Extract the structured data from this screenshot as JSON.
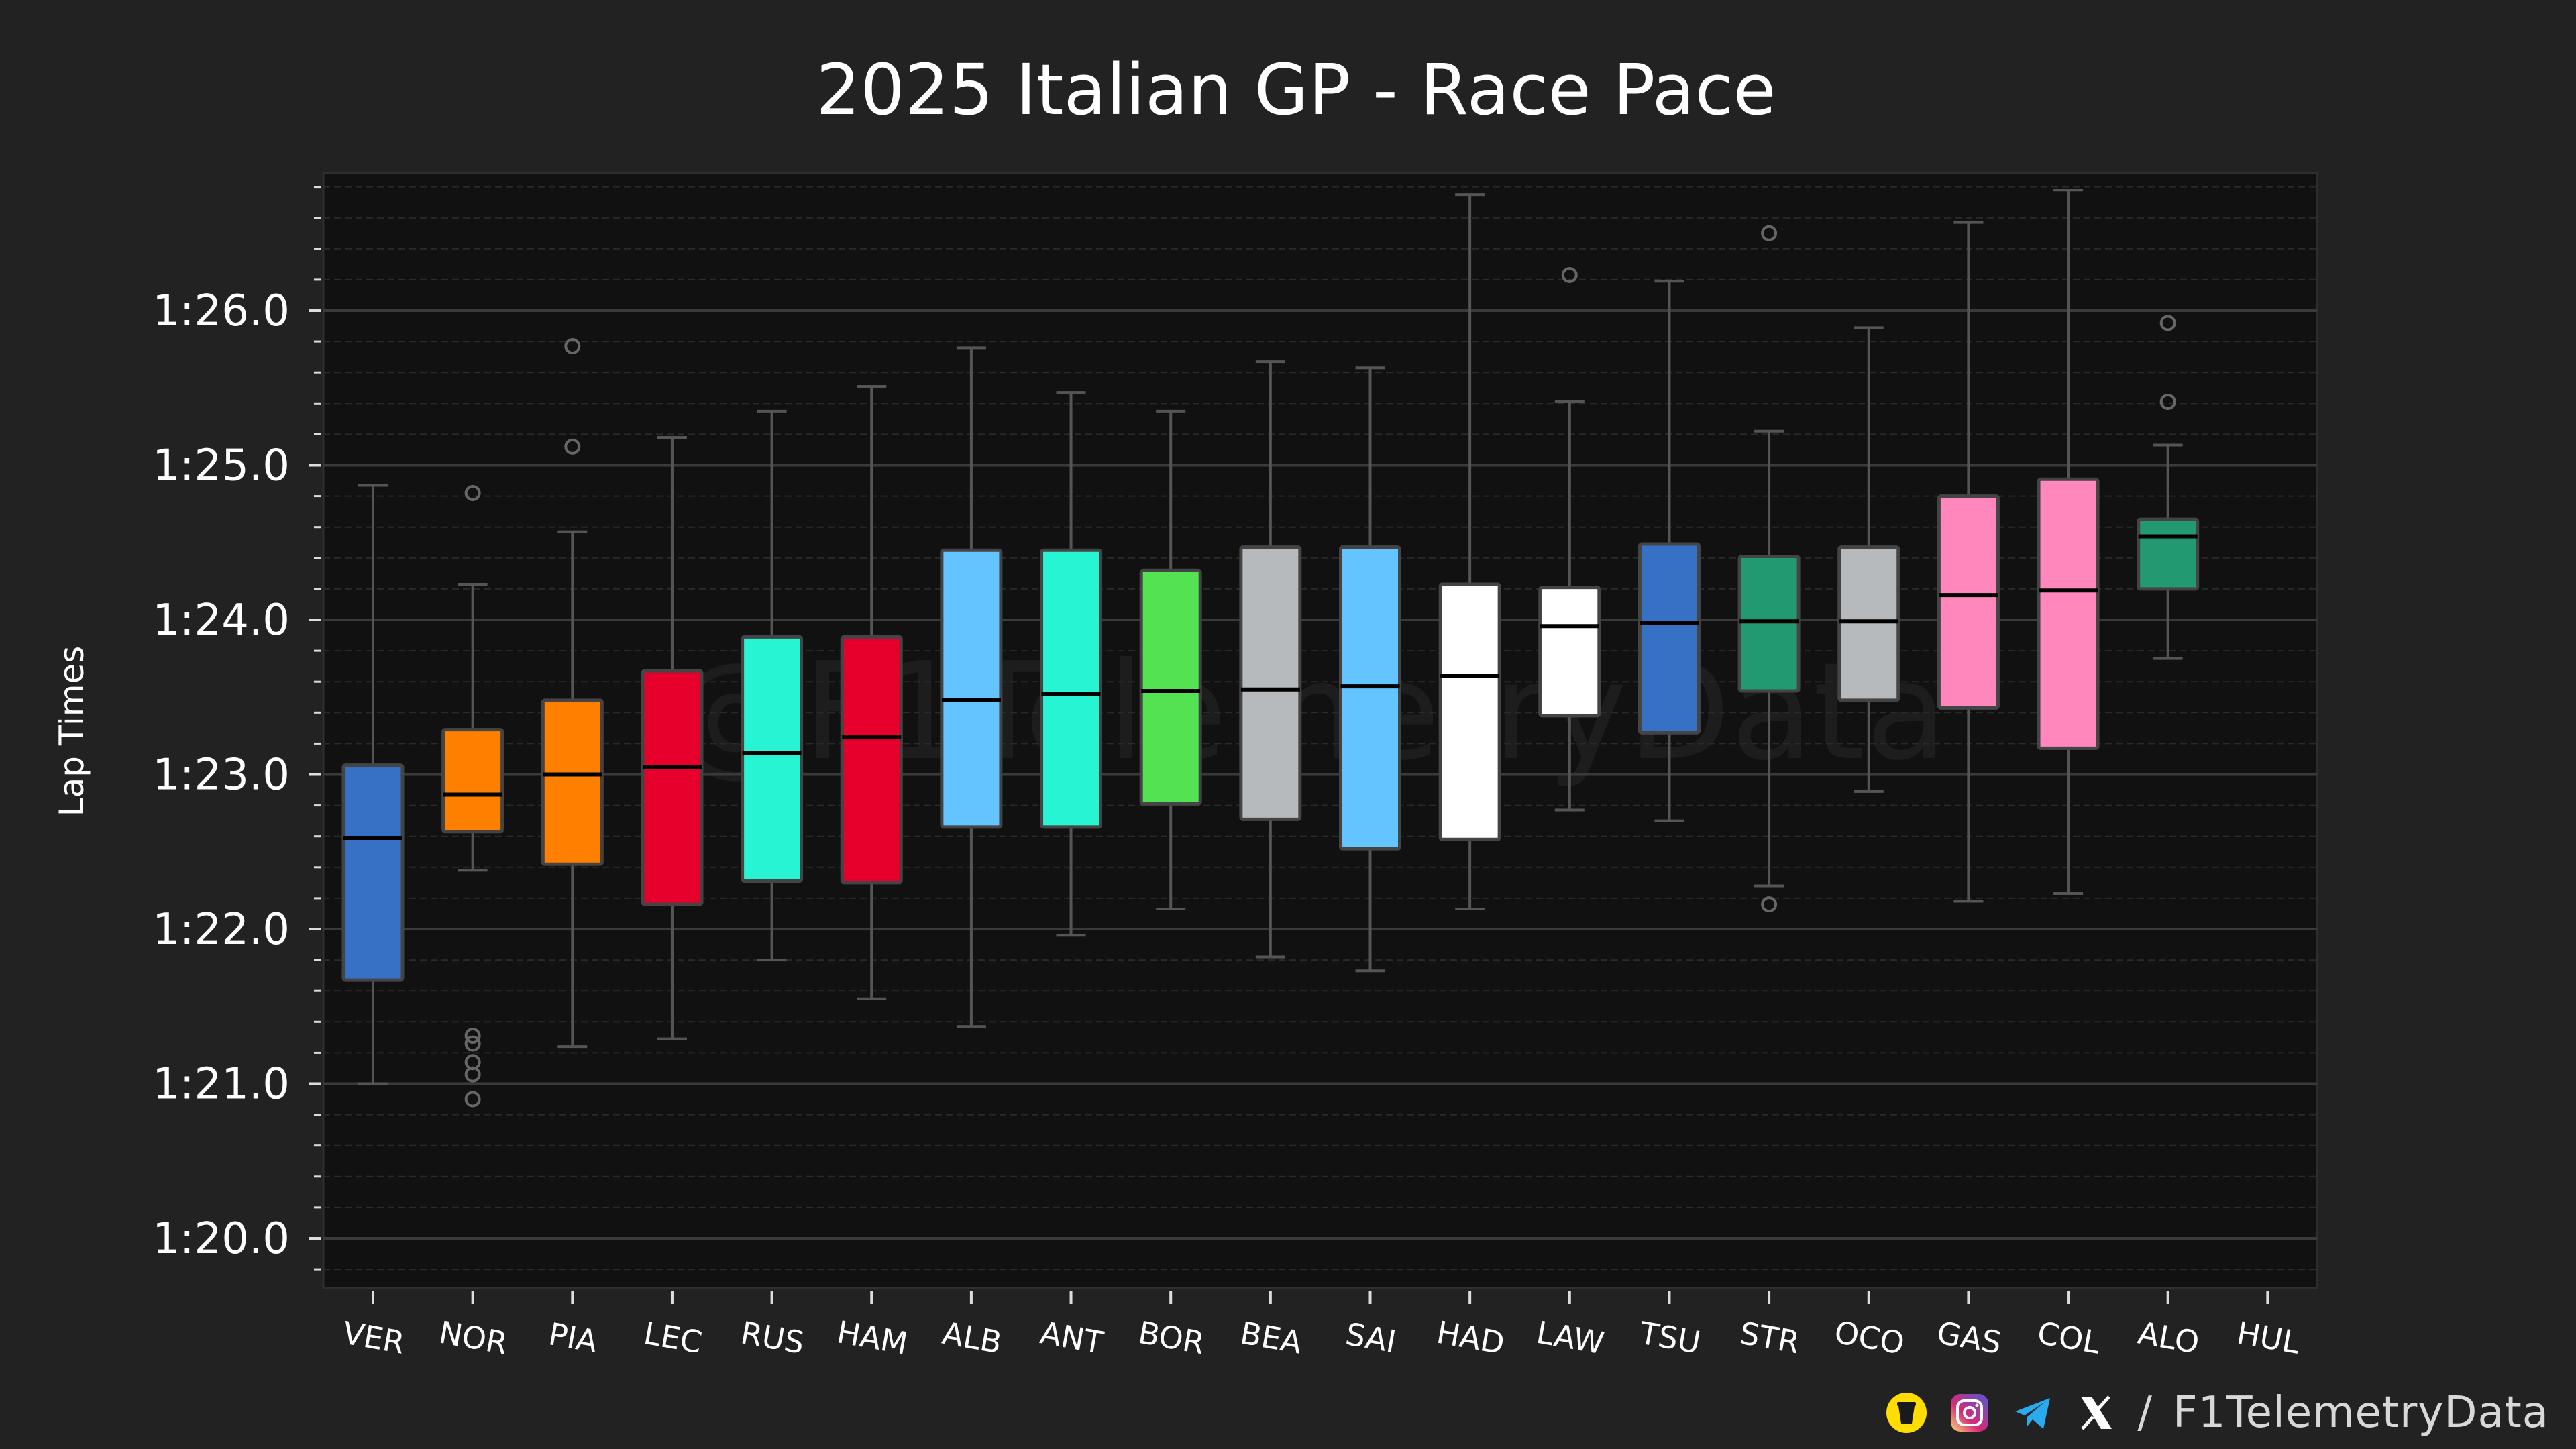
{
  "chart_data": {
    "type": "box",
    "title": "2025 Italian GP - Race Pace",
    "xlabel": "",
    "ylabel": "Lap Times",
    "ylim_seconds": [
      79.65,
      86.9
    ],
    "y_tick_values_seconds": [
      80,
      81,
      82,
      83,
      84,
      85,
      86
    ],
    "y_tick_labels": [
      "1:20.0",
      "1:21.0",
      "1:22.0",
      "1:23.0",
      "1:24.0",
      "1:25.0",
      "1:26.0"
    ],
    "grid": true,
    "watermark": "@F1TelemetryData",
    "drivers": [
      {
        "code": "VER",
        "color": "#3671C6",
        "median_color": "#000000",
        "whisker_low": 81.0,
        "q1": 81.67,
        "median": 82.59,
        "q3": 83.06,
        "whisker_high": 84.87,
        "outliers": []
      },
      {
        "code": "NOR",
        "color": "#FF8000",
        "median_color": "#000000",
        "whisker_low": 82.38,
        "q1": 82.63,
        "median": 82.87,
        "q3": 83.29,
        "whisker_high": 84.23,
        "outliers": [
          84.82,
          81.31,
          81.26,
          81.14,
          81.06,
          80.9
        ]
      },
      {
        "code": "PIA",
        "color": "#FF8000",
        "median_color": "#000000",
        "whisker_low": 81.24,
        "q1": 82.42,
        "median": 83.0,
        "q3": 83.48,
        "whisker_high": 84.57,
        "outliers": [
          85.77,
          85.12
        ]
      },
      {
        "code": "LEC",
        "color": "#E8002D",
        "median_color": "#000000",
        "whisker_low": 81.29,
        "q1": 82.16,
        "median": 83.05,
        "q3": 83.67,
        "whisker_high": 85.18,
        "outliers": []
      },
      {
        "code": "RUS",
        "color": "#27F4D2",
        "median_color": "#000000",
        "whisker_low": 81.8,
        "q1": 82.31,
        "median": 83.14,
        "q3": 83.89,
        "whisker_high": 85.35,
        "outliers": []
      },
      {
        "code": "HAM",
        "color": "#E8002D",
        "median_color": "#000000",
        "whisker_low": 81.55,
        "q1": 82.3,
        "median": 83.24,
        "q3": 83.89,
        "whisker_high": 85.51,
        "outliers": []
      },
      {
        "code": "ALB",
        "color": "#64C4FF",
        "median_color": "#000000",
        "whisker_low": 81.37,
        "q1": 82.66,
        "median": 83.48,
        "q3": 84.45,
        "whisker_high": 85.76,
        "outliers": []
      },
      {
        "code": "ANT",
        "color": "#27F4D2",
        "median_color": "#000000",
        "whisker_low": 81.96,
        "q1": 82.66,
        "median": 83.52,
        "q3": 84.45,
        "whisker_high": 85.47,
        "outliers": []
      },
      {
        "code": "BOR",
        "color": "#52E252",
        "median_color": "#000000",
        "whisker_low": 82.13,
        "q1": 82.81,
        "median": 83.54,
        "q3": 84.32,
        "whisker_high": 85.35,
        "outliers": []
      },
      {
        "code": "BEA",
        "color": "#B6BABD",
        "median_color": "#000000",
        "whisker_low": 81.82,
        "q1": 82.71,
        "median": 83.55,
        "q3": 84.47,
        "whisker_high": 85.67,
        "outliers": []
      },
      {
        "code": "SAI",
        "color": "#64C4FF",
        "median_color": "#000000",
        "whisker_low": 81.73,
        "q1": 82.52,
        "median": 83.57,
        "q3": 84.47,
        "whisker_high": 85.63,
        "outliers": []
      },
      {
        "code": "HAD",
        "color": "#FFFFFF",
        "median_color": "#000000",
        "whisker_low": 82.13,
        "q1": 82.58,
        "median": 83.64,
        "q3": 84.23,
        "whisker_high": 86.75,
        "outliers": []
      },
      {
        "code": "LAW",
        "color": "#FFFFFF",
        "median_color": "#000000",
        "whisker_low": 82.77,
        "q1": 83.38,
        "median": 83.96,
        "q3": 84.21,
        "whisker_high": 85.41,
        "outliers": [
          86.23
        ]
      },
      {
        "code": "TSU",
        "color": "#3671C6",
        "median_color": "#000000",
        "whisker_low": 82.7,
        "q1": 83.27,
        "median": 83.98,
        "q3": 84.49,
        "whisker_high": 86.19,
        "outliers": []
      },
      {
        "code": "STR",
        "color": "#229971",
        "median_color": "#000000",
        "whisker_low": 82.28,
        "q1": 83.54,
        "median": 83.99,
        "q3": 84.41,
        "whisker_high": 85.22,
        "outliers": [
          86.5,
          82.16
        ]
      },
      {
        "code": "OCO",
        "color": "#B6BABD",
        "median_color": "#000000",
        "whisker_low": 82.89,
        "q1": 83.48,
        "median": 83.99,
        "q3": 84.47,
        "whisker_high": 85.89,
        "outliers": []
      },
      {
        "code": "GAS",
        "color": "#FF87BC",
        "median_color": "#000000",
        "whisker_low": 82.18,
        "q1": 83.43,
        "median": 84.16,
        "q3": 84.8,
        "whisker_high": 86.57,
        "outliers": []
      },
      {
        "code": "COL",
        "color": "#FF87BC",
        "median_color": "#000000",
        "whisker_low": 82.23,
        "q1": 83.17,
        "median": 84.19,
        "q3": 84.91,
        "whisker_high": 86.78,
        "outliers": []
      },
      {
        "code": "ALO",
        "color": "#229971",
        "median_color": "#000000",
        "whisker_low": 83.75,
        "q1": 84.2,
        "median": 84.54,
        "q3": 84.65,
        "whisker_high": 85.13,
        "outliers": [
          85.92,
          85.41
        ]
      },
      {
        "code": "HUL",
        "color": "#B6BABD",
        "median_color": "#000000",
        "whisker_low": null,
        "q1": null,
        "median": null,
        "q3": null,
        "whisker_high": null,
        "outliers": []
      }
    ]
  },
  "footer": {
    "separator": "/",
    "handle": "F1TelemetryData",
    "icons": [
      "coffee-icon",
      "instagram-icon",
      "telegram-icon",
      "x-icon"
    ]
  },
  "colors": {
    "page_bg": "#222222",
    "plot_bg": "#111111",
    "grid_major": "#3a3a3a",
    "grid_minor": "#2a2a2a",
    "whisker": "#555555"
  }
}
